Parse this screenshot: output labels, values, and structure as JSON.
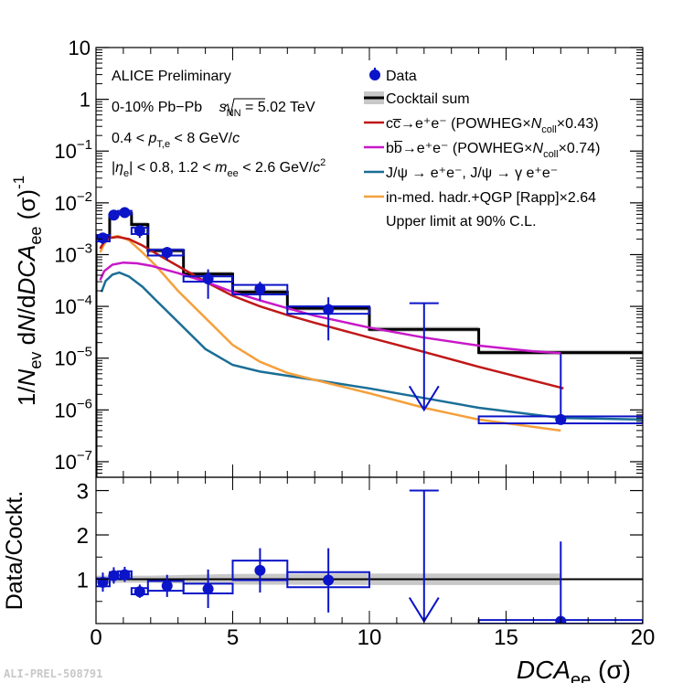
{
  "chart_data": [
    {
      "name": "main-panel",
      "type": "line",
      "scale": "log",
      "ylim": [
        5e-08,
        10
      ],
      "xlim": [
        0,
        20
      ],
      "ylabel": {
        "prefix": "1/",
        "N": "N",
        "ev": "ev",
        "mid": " d",
        "N2": "N",
        "mid2": "/d",
        "DCA": "DCA",
        "ee": "ee",
        "unit_open": " (σ)",
        "sup": "-1"
      },
      "y_ticks": [
        {
          "value": 10,
          "label": "10"
        },
        {
          "value": 1,
          "label": "1"
        },
        {
          "value": 0.1,
          "base": "10",
          "exp": "−1"
        },
        {
          "value": 0.01,
          "base": "10",
          "exp": "−2"
        },
        {
          "value": 0.001,
          "base": "10",
          "exp": "−3"
        },
        {
          "value": 0.0001,
          "base": "10",
          "exp": "−4"
        },
        {
          "value": 1e-05,
          "base": "10",
          "exp": "−5"
        },
        {
          "value": 1e-06,
          "base": "10",
          "exp": "−6"
        },
        {
          "value": 1e-07,
          "base": "10",
          "exp": "−7"
        }
      ],
      "annotations": {
        "experiment": "ALICE Preliminary",
        "system_prefix": "0-10% Pb−Pb ",
        "sqrt_s": "s",
        "sqrt_s_sub": "NN",
        "energy": " = 5.02 TeV",
        "pt_cut_a": "0.4 < ",
        "pt_p": "p",
        "pt_sub": "T,e",
        "pt_cut_b": " < 8 GeV/",
        "pt_c": "c",
        "eta_cut_a": "|",
        "eta_sym": "η",
        "eta_sub": "e",
        "eta_cut_b": "| < 0.8, 1.2 < ",
        "m_sym": "m",
        "m_sub": "ee",
        "m_cut_b": " < 2.6 GeV/",
        "m_c": "c",
        "m_sup": "2"
      },
      "legend": {
        "position": "top-right",
        "data": "Data",
        "cocktail": "Cocktail sum",
        "cc_label": "cc̅→e⁺e⁻ (POWHEG×",
        "cc_n": "N",
        "cc_sub": "coll",
        "cc_factor": "×0.43)",
        "bb_label": "bb̅→e⁺e⁻ (POWHEG×",
        "bb_n": "N",
        "bb_sub": "coll",
        "bb_factor": "×0.74)",
        "jpsi": "J/ψ → e⁺e⁻, J/ψ → γ e⁺e⁻",
        "rapp": "in-med. hadr.+QGP [Rapp]×2.64",
        "upper_limit": "Upper limit at 90% C.L."
      },
      "colors": {
        "data": "#0b14c8",
        "cocktail": "#000000",
        "band": "#c8c8c8",
        "cc": "#c01818",
        "bb": "#c818c8",
        "jpsi": "#1a6e96",
        "rapp": "#f5a03c"
      },
      "cocktail_bins": [
        {
          "x": [
            0,
            0.5
          ],
          "y": 0.0022
        },
        {
          "x": [
            0.5,
            0.8
          ],
          "y": 0.0058
        },
        {
          "x": [
            0.8,
            1.3
          ],
          "y": 0.0062
        },
        {
          "x": [
            1.3,
            1.9
          ],
          "y": 0.0038
        },
        {
          "x": [
            1.9,
            3.2
          ],
          "y": 0.0012
        },
        {
          "x": [
            3.2,
            5
          ],
          "y": 0.00042
        },
        {
          "x": [
            5,
            7
          ],
          "y": 0.00019
        },
        {
          "x": [
            7,
            10
          ],
          "y": 9.2e-05
        },
        {
          "x": [
            10,
            14
          ],
          "y": 3.6e-05
        },
        {
          "x": [
            14,
            20
          ],
          "y": 1.28e-05
        }
      ],
      "data_points": [
        {
          "x": 0.25,
          "xlo": 0.0,
          "xhi": 0.5,
          "y": 0.0021,
          "ylo": 0.0016,
          "yhi": 0.0026,
          "boxlo": 0.0018,
          "boxhi": 0.0024
        },
        {
          "x": 0.65,
          "xlo": 0.5,
          "xhi": 0.8,
          "y": 0.0058,
          "ylo": 0.0049,
          "yhi": 0.0068,
          "boxlo": 0.0053,
          "boxhi": 0.0063
        },
        {
          "x": 1.05,
          "xlo": 0.8,
          "xhi": 1.3,
          "y": 0.0065,
          "ylo": 0.0055,
          "yhi": 0.0076,
          "boxlo": 0.006,
          "boxhi": 0.007
        },
        {
          "x": 1.6,
          "xlo": 1.3,
          "xhi": 1.9,
          "y": 0.0029,
          "ylo": 0.0021,
          "yhi": 0.0037,
          "boxlo": 0.0025,
          "boxhi": 0.0033
        },
        {
          "x": 2.6,
          "xlo": 1.9,
          "xhi": 3.2,
          "y": 0.0011,
          "ylo": 0.00078,
          "yhi": 0.0014,
          "boxlo": 0.00096,
          "boxhi": 0.00124
        },
        {
          "x": 4.1,
          "xlo": 3.2,
          "xhi": 5.0,
          "y": 0.00034,
          "ylo": 0.00014,
          "yhi": 0.00052,
          "boxlo": 0.0003,
          "boxhi": 0.00038
        },
        {
          "x": 6.0,
          "xlo": 5.0,
          "xhi": 7.0,
          "y": 0.00022,
          "ylo": 0.00013,
          "yhi": 0.0003,
          "boxlo": 0.00017,
          "boxhi": 0.00026
        },
        {
          "x": 8.5,
          "xlo": 7.0,
          "xhi": 10.0,
          "y": 8.7e-05,
          "ylo": 2.2e-05,
          "yhi": 0.00015,
          "boxlo": 7.2e-05,
          "boxhi": 0.0001
        },
        {
          "x": 17.0,
          "xlo": 14.0,
          "xhi": 20.0,
          "y": 6.5e-07,
          "ylo": 5.8e-07,
          "yhi": 1.2e-05,
          "boxlo": 5.5e-07,
          "boxhi": 7.5e-07
        }
      ],
      "upper_limit": {
        "x": 12.0,
        "xlo": 10.0,
        "xhi": 14.0,
        "y": 0.000115,
        "arrow_to": 1e-06
      },
      "curves": {
        "cc": [
          [
            0.15,
            0.0013
          ],
          [
            0.3,
            0.0018
          ],
          [
            0.5,
            0.0021
          ],
          [
            0.8,
            0.0022
          ],
          [
            1.2,
            0.002
          ],
          [
            1.7,
            0.0015
          ],
          [
            2.2,
            0.00105
          ],
          [
            3,
            0.0006
          ],
          [
            4,
            0.0003
          ],
          [
            5,
            0.00016
          ],
          [
            6,
            0.0001
          ],
          [
            7,
            6.8e-05
          ],
          [
            8,
            4.8e-05
          ],
          [
            10,
            2.5e-05
          ],
          [
            12,
            1.32e-05
          ],
          [
            14,
            6.8e-06
          ],
          [
            17,
            2.7e-06
          ],
          [
            17.1,
            2.6e-06
          ]
        ],
        "bb": [
          [
            0.15,
            0.00032
          ],
          [
            0.3,
            0.00048
          ],
          [
            0.6,
            0.00064
          ],
          [
            1,
            0.0007
          ],
          [
            1.5,
            0.00068
          ],
          [
            2,
            0.00061
          ],
          [
            3,
            0.00044
          ],
          [
            4,
            0.0003
          ],
          [
            5,
            0.00019
          ],
          [
            6,
            0.00013
          ],
          [
            7,
            9.2e-05
          ],
          [
            8,
            6.6e-05
          ],
          [
            10,
            3.9e-05
          ],
          [
            12,
            2.5e-05
          ],
          [
            14,
            1.75e-05
          ],
          [
            16,
            1.35e-05
          ],
          [
            17,
            1.25e-05
          ]
        ],
        "jpsi": [
          [
            0.2,
            0.00019
          ],
          [
            0.35,
            0.00031
          ],
          [
            0.6,
            0.00041
          ],
          [
            0.85,
            0.00045
          ],
          [
            1.2,
            0.00038
          ],
          [
            1.7,
            0.00024
          ],
          [
            2.2,
            0.00013
          ],
          [
            3,
            5e-05
          ],
          [
            4,
            1.5e-05
          ],
          [
            5,
            7.4e-06
          ],
          [
            6,
            5.5e-06
          ],
          [
            8,
            3.8e-06
          ],
          [
            10,
            2.6e-06
          ],
          [
            12,
            1.7e-06
          ],
          [
            14,
            1.1e-06
          ],
          [
            17,
            7e-07
          ],
          [
            20,
            6.5e-07
          ]
        ],
        "rapp": [
          [
            0.15,
            0.0011
          ],
          [
            0.3,
            0.0016
          ],
          [
            0.5,
            0.0021
          ],
          [
            0.8,
            0.0023
          ],
          [
            1.2,
            0.0019
          ],
          [
            1.7,
            0.0011
          ],
          [
            2.2,
            0.0006
          ],
          [
            3,
            0.0002
          ],
          [
            4,
            6e-05
          ],
          [
            5,
            1.8e-05
          ],
          [
            6,
            8.5e-06
          ],
          [
            7,
            5.2e-06
          ],
          [
            8,
            3.8e-06
          ],
          [
            10,
            2.1e-06
          ],
          [
            12,
            1.1e-06
          ],
          [
            14,
            6.5e-07
          ],
          [
            17,
            4e-07
          ]
        ]
      }
    },
    {
      "name": "ratio-panel",
      "type": "scatter",
      "xlabel": {
        "var": "DCA",
        "sub": "ee",
        "unit": " (σ)"
      },
      "ylabel": "Data/Cockt.",
      "xlim": [
        0,
        20
      ],
      "ylim": [
        0,
        3.3
      ],
      "x_ticks": [
        {
          "value": 0,
          "label": "0"
        },
        {
          "value": 5,
          "label": "5"
        },
        {
          "value": 10,
          "label": "10"
        },
        {
          "value": 15,
          "label": "15"
        },
        {
          "value": 20,
          "label": "20"
        }
      ],
      "y_ticks": [
        {
          "value": 1,
          "label": "1"
        },
        {
          "value": 2,
          "label": "2"
        },
        {
          "value": 3,
          "label": "3"
        }
      ],
      "reference_line": 1,
      "band": [
        [
          0,
          0.92,
          1.08
        ],
        [
          2,
          0.92,
          1.08
        ],
        [
          5,
          0.88,
          1.12
        ],
        [
          10,
          0.87,
          1.13
        ],
        [
          17,
          0.87,
          1.13
        ]
      ],
      "points": [
        {
          "x": 0.25,
          "xlo": 0.0,
          "xhi": 0.5,
          "y": 0.93,
          "ylo": 0.72,
          "yhi": 1.15,
          "boxlo": 0.84,
          "boxhi": 1.02
        },
        {
          "x": 0.65,
          "xlo": 0.5,
          "xhi": 0.8,
          "y": 1.08,
          "ylo": 0.9,
          "yhi": 1.27,
          "boxlo": 1.0,
          "boxhi": 1.16
        },
        {
          "x": 1.05,
          "xlo": 0.8,
          "xhi": 1.3,
          "y": 1.1,
          "ylo": 0.94,
          "yhi": 1.28,
          "boxlo": 1.02,
          "boxhi": 1.18
        },
        {
          "x": 1.6,
          "xlo": 1.3,
          "xhi": 1.9,
          "y": 0.72,
          "ylo": 0.58,
          "yhi": 0.88,
          "boxlo": 0.66,
          "boxhi": 0.8
        },
        {
          "x": 2.6,
          "xlo": 1.9,
          "xhi": 3.2,
          "y": 0.85,
          "ylo": 0.6,
          "yhi": 1.1,
          "boxlo": 0.74,
          "boxhi": 0.96
        },
        {
          "x": 4.1,
          "xlo": 3.2,
          "xhi": 5.0,
          "y": 0.78,
          "ylo": 0.35,
          "yhi": 1.22,
          "boxlo": 0.68,
          "boxhi": 0.9
        },
        {
          "x": 6.0,
          "xlo": 5.0,
          "xhi": 7.0,
          "y": 1.2,
          "ylo": 0.7,
          "yhi": 1.7,
          "boxlo": 0.98,
          "boxhi": 1.42
        },
        {
          "x": 8.5,
          "xlo": 7.0,
          "xhi": 10.0,
          "y": 0.98,
          "ylo": 0.25,
          "yhi": 1.7,
          "boxlo": 0.82,
          "boxhi": 1.16
        },
        {
          "x": 17.0,
          "xlo": 14.0,
          "xhi": 20.0,
          "y": 0.05,
          "ylo": 0.0,
          "yhi": 1.85,
          "boxlo": 0.0,
          "boxhi": 0.08
        }
      ],
      "upper_limit": {
        "x": 12.0,
        "xlo": 10.0,
        "xhi": 14.0,
        "y": 3.0,
        "arrow_to": 0.05
      }
    }
  ],
  "footer": {
    "id": "ALI-PREL-508791"
  }
}
